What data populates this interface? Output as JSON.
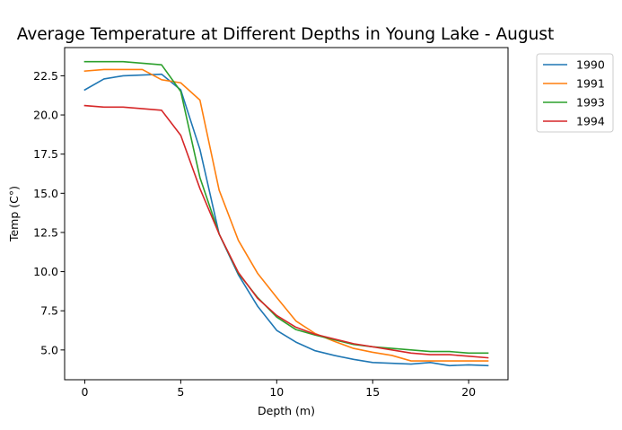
{
  "chart_data": {
    "type": "line",
    "title": "Average Temperature at Different Depths in Young Lake - August",
    "xlabel": "Depth (m)",
    "ylabel": "Temp (C°)",
    "xlim": [
      -1.05,
      22.05
    ],
    "ylim": [
      3.1,
      24.3
    ],
    "xticks": [
      0,
      5,
      10,
      15,
      20
    ],
    "xtick_labels": [
      "0",
      "5",
      "10",
      "15",
      "20"
    ],
    "yticks": [
      5.0,
      7.5,
      10.0,
      12.5,
      15.0,
      17.5,
      20.0,
      22.5
    ],
    "ytick_labels": [
      "5.0",
      "7.5",
      "10.0",
      "12.5",
      "15.0",
      "17.5",
      "20.0",
      "22.5"
    ],
    "grid": false,
    "legend_position": "outside-upper-right",
    "x": [
      0,
      1,
      2,
      3,
      4,
      5,
      6,
      7,
      8,
      9,
      10,
      11,
      12,
      13,
      14,
      15,
      16,
      17,
      18,
      19,
      20,
      21
    ],
    "series": [
      {
        "name": "1990",
        "color": "#1f77b4",
        "values": [
          21.6,
          22.3,
          22.5,
          22.55,
          22.6,
          21.6,
          17.8,
          12.4,
          9.8,
          7.8,
          6.25,
          5.5,
          4.95,
          4.65,
          4.4,
          4.2,
          4.15,
          4.1,
          4.2,
          4.0,
          4.05,
          4.0
        ]
      },
      {
        "name": "1991",
        "color": "#ff7f0e",
        "values": [
          22.8,
          22.9,
          22.9,
          22.9,
          22.25,
          22.05,
          20.95,
          15.2,
          12.0,
          9.9,
          8.35,
          6.85,
          6.05,
          5.55,
          5.1,
          4.85,
          4.65,
          4.3,
          4.3,
          4.3,
          4.3,
          4.3
        ]
      },
      {
        "name": "1993",
        "color": "#2ca02c",
        "values": [
          23.4,
          23.4,
          23.4,
          23.3,
          23.2,
          21.5,
          16.0,
          12.4,
          9.9,
          8.35,
          7.1,
          6.3,
          5.95,
          5.65,
          5.35,
          5.2,
          5.1,
          5.0,
          4.9,
          4.9,
          4.8,
          4.8
        ]
      },
      {
        "name": "1994",
        "color": "#d62728",
        "values": [
          20.6,
          20.5,
          20.5,
          20.4,
          20.3,
          18.7,
          15.3,
          12.4,
          9.95,
          8.3,
          7.2,
          6.45,
          6.0,
          5.7,
          5.4,
          5.2,
          5.0,
          4.8,
          4.7,
          4.7,
          4.6,
          4.5
        ]
      }
    ]
  }
}
